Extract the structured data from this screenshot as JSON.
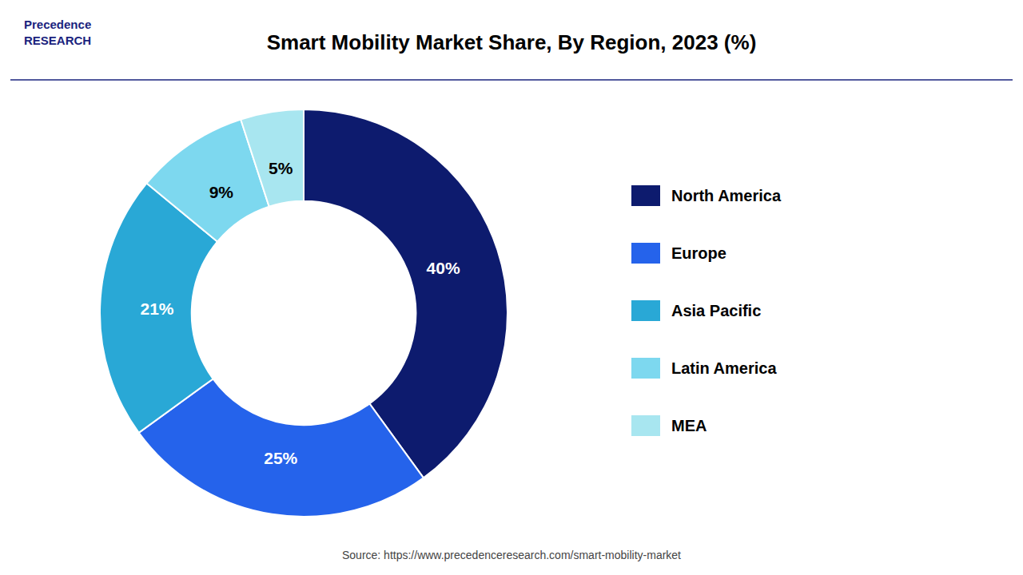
{
  "chart_data": {
    "type": "pie",
    "title": "Smart Mobility Market Share, By Region, 2023 (%)",
    "categories": [
      "North America",
      "Europe",
      "Asia Pacific",
      "Latin America",
      "MEA"
    ],
    "values": [
      40,
      25,
      21,
      9,
      5
    ],
    "value_labels": [
      "40%",
      "25%",
      "21%",
      "9%",
      "5%"
    ],
    "colors": [
      "#0d1b6e",
      "#2563eb",
      "#29a8d6",
      "#7dd8ef",
      "#a8e6f0"
    ],
    "data_labels": true,
    "legend": "right",
    "annotations": [
      "Precedence\nRESEARCH",
      "Source: https://www.precedenceresearch.com/smart-mobility-market"
    ]
  }
}
